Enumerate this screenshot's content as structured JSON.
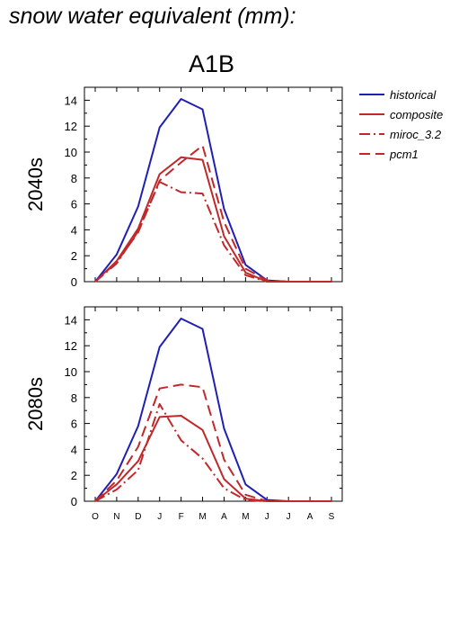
{
  "title": "snow water equivalent (mm):",
  "scenario": "A1B",
  "colors": {
    "historical": "#1f1fb4",
    "future": "#c0282a"
  },
  "legend": [
    {
      "name": "historical",
      "color": "#1f1fb4",
      "dash": "solid"
    },
    {
      "name": "composite",
      "color": "#c0282a",
      "dash": "solid"
    },
    {
      "name": "miroc_3.2",
      "color": "#c0282a",
      "dash": "dashdot"
    },
    {
      "name": "pcm1",
      "color": "#c0282a",
      "dash": "dashed"
    }
  ],
  "chart_data": [
    {
      "type": "line",
      "panel_label": "2040s",
      "categories": [
        "O",
        "N",
        "D",
        "J",
        "F",
        "M",
        "A",
        "M",
        "J",
        "J",
        "A",
        "S"
      ],
      "ylim": [
        0,
        15
      ],
      "yticks": [
        0,
        2,
        4,
        6,
        8,
        10,
        12,
        14
      ],
      "series": [
        {
          "name": "historical",
          "values": [
            0.0,
            2.1,
            5.8,
            11.9,
            14.1,
            13.3,
            5.6,
            1.3,
            0.1,
            0.0,
            0.0,
            0.0
          ]
        },
        {
          "name": "composite",
          "values": [
            0.0,
            1.6,
            4.1,
            8.3,
            9.6,
            9.4,
            3.5,
            0.7,
            0.0,
            0.0,
            0.0,
            0.0
          ]
        },
        {
          "name": "miroc_3.2",
          "values": [
            0.0,
            1.4,
            3.9,
            7.7,
            6.9,
            6.8,
            2.8,
            0.5,
            0.0,
            0.0,
            0.0,
            0.0
          ]
        },
        {
          "name": "pcm1",
          "values": [
            0.0,
            1.5,
            3.8,
            7.8,
            9.2,
            10.5,
            4.6,
            1.0,
            0.1,
            0.0,
            0.0,
            0.0
          ]
        }
      ]
    },
    {
      "type": "line",
      "panel_label": "2080s",
      "categories": [
        "O",
        "N",
        "D",
        "J",
        "F",
        "M",
        "A",
        "M",
        "J",
        "J",
        "A",
        "S"
      ],
      "ylim": [
        0,
        15
      ],
      "yticks": [
        0,
        2,
        4,
        6,
        8,
        10,
        12,
        14
      ],
      "series": [
        {
          "name": "historical",
          "values": [
            0.0,
            2.1,
            5.8,
            11.9,
            14.1,
            13.3,
            5.6,
            1.3,
            0.1,
            0.0,
            0.0,
            0.0
          ]
        },
        {
          "name": "composite",
          "values": [
            0.0,
            1.3,
            3.1,
            6.5,
            6.6,
            5.5,
            1.7,
            0.2,
            0.0,
            0.0,
            0.0,
            0.0
          ]
        },
        {
          "name": "miroc_3.2",
          "values": [
            0.0,
            0.9,
            2.4,
            7.5,
            4.7,
            3.3,
            1.0,
            0.1,
            0.0,
            0.0,
            0.0,
            0.0
          ]
        },
        {
          "name": "pcm1",
          "values": [
            0.0,
            1.6,
            4.2,
            8.7,
            9.0,
            8.8,
            3.2,
            0.5,
            0.0,
            0.0,
            0.0,
            0.0
          ]
        }
      ]
    }
  ]
}
